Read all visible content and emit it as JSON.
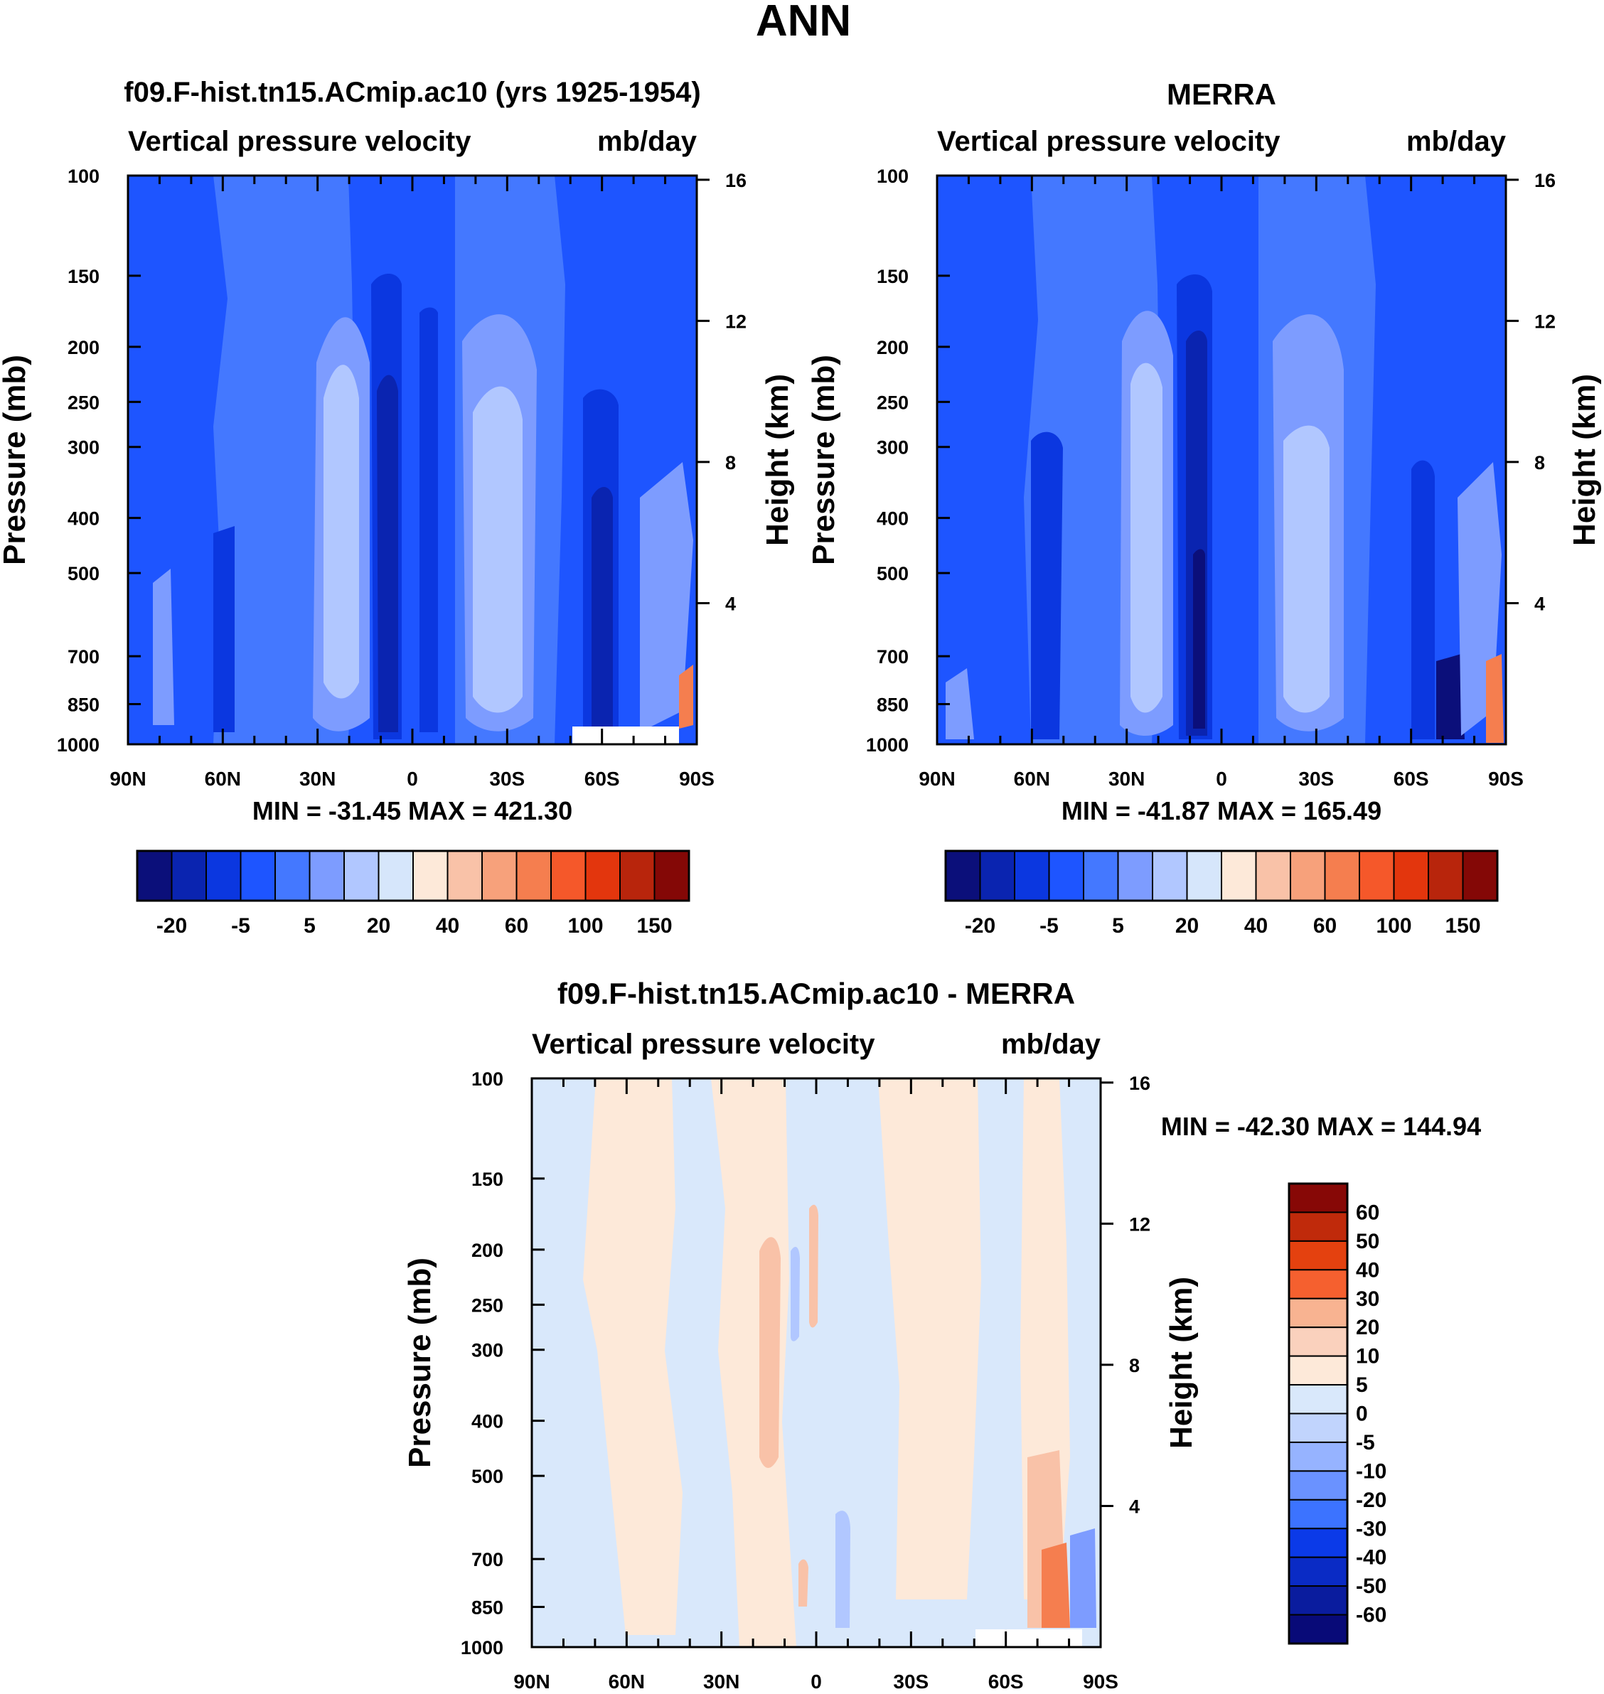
{
  "figure_title": "ANN",
  "colors": {
    "blues": [
      "#0b0f7a",
      "#0a24b0",
      "#0b37e0",
      "#1e55ff",
      "#4478ff",
      "#7d9cff",
      "#b1c7ff",
      "#d6e6fb"
    ],
    "reds": [
      "#fde9d9",
      "#f9c2a8",
      "#f7a17b",
      "#f57e4f",
      "#f5582a",
      "#e3360d",
      "#b8250c",
      "#840806"
    ],
    "diff_scale": [
      "#080a78",
      "#0a1c9e",
      "#0a2bc5",
      "#0b3ae8",
      "#2157ff",
      "#3c73ff",
      "#6a92ff",
      "#96b3ff",
      "#c1d4fd",
      "#d9e8fb",
      "#fde9d9",
      "#fad1bd",
      "#f8b391",
      "#f78d62",
      "#f5602f",
      "#e4410f",
      "#c02a0b",
      "#870806"
    ],
    "missing": "#ffffff"
  },
  "chart_data": [
    {
      "id": "model",
      "type": "contour",
      "title": "f09.F-hist.tn15.ACmip.ac10 (yrs 1925-1954)",
      "left_string": "Vertical pressure velocity",
      "right_string": "mb/day",
      "ylabel": "Pressure (mb)",
      "ylabel_right": "Height (km)",
      "x_ticks": [
        "90N",
        "60N",
        "30N",
        "0",
        "30S",
        "60S",
        "90S"
      ],
      "y_ticks": [
        "100",
        "150",
        "200",
        "250",
        "300",
        "400",
        "500",
        "700",
        "850",
        "1000"
      ],
      "y_ticks_right": [
        "16",
        "12",
        "8",
        "4"
      ],
      "minmax": "MIN = -31.45  MAX = 421.30",
      "min": -31.45,
      "max": 421.3,
      "colorbar_labels": [
        "-20",
        "-5",
        "5",
        "20",
        "40",
        "60",
        "100",
        "150"
      ],
      "colorbar_levels": [
        -30,
        -20,
        -10,
        -5,
        0,
        5,
        10,
        20,
        30,
        40,
        50,
        60,
        80,
        100,
        125,
        150
      ]
    },
    {
      "id": "obs",
      "type": "contour",
      "title": "MERRA",
      "left_string": "Vertical pressure velocity",
      "right_string": "mb/day",
      "ylabel": "Pressure (mb)",
      "ylabel_right": "Height (km)",
      "x_ticks": [
        "90N",
        "60N",
        "30N",
        "0",
        "30S",
        "60S",
        "90S"
      ],
      "y_ticks": [
        "100",
        "150",
        "200",
        "250",
        "300",
        "400",
        "500",
        "700",
        "850",
        "1000"
      ],
      "y_ticks_right": [
        "16",
        "12",
        "8",
        "4"
      ],
      "minmax": "MIN = -41.87  MAX = 165.49",
      "min": -41.87,
      "max": 165.49,
      "colorbar_labels": [
        "-20",
        "-5",
        "5",
        "20",
        "40",
        "60",
        "100",
        "150"
      ],
      "colorbar_levels": [
        -30,
        -20,
        -10,
        -5,
        0,
        5,
        10,
        20,
        30,
        40,
        50,
        60,
        80,
        100,
        125,
        150
      ]
    },
    {
      "id": "diff",
      "type": "contour",
      "title": "f09.F-hist.tn15.ACmip.ac10 - MERRA",
      "left_string": "Vertical pressure velocity",
      "right_string": "mb/day",
      "ylabel": "Pressure (mb)",
      "ylabel_right": "Height (km)",
      "x_ticks": [
        "90N",
        "60N",
        "30N",
        "0",
        "30S",
        "60S",
        "90S"
      ],
      "y_ticks": [
        "100",
        "150",
        "200",
        "250",
        "300",
        "400",
        "500",
        "700",
        "850",
        "1000"
      ],
      "y_ticks_right": [
        "16",
        "12",
        "8",
        "4"
      ],
      "minmax": "MIN = -42.30  MAX = 144.94",
      "min": -42.3,
      "max": 144.94,
      "colorbar_labels": [
        "60",
        "50",
        "40",
        "30",
        "20",
        "10",
        "5",
        "0",
        "-5",
        "-10",
        "-20",
        "-30",
        "-40",
        "-50",
        "-60"
      ],
      "colorbar_levels": [
        -60,
        -50,
        -40,
        -30,
        -20,
        -10,
        -5,
        0,
        5,
        10,
        20,
        30,
        40,
        50,
        60
      ]
    }
  ]
}
